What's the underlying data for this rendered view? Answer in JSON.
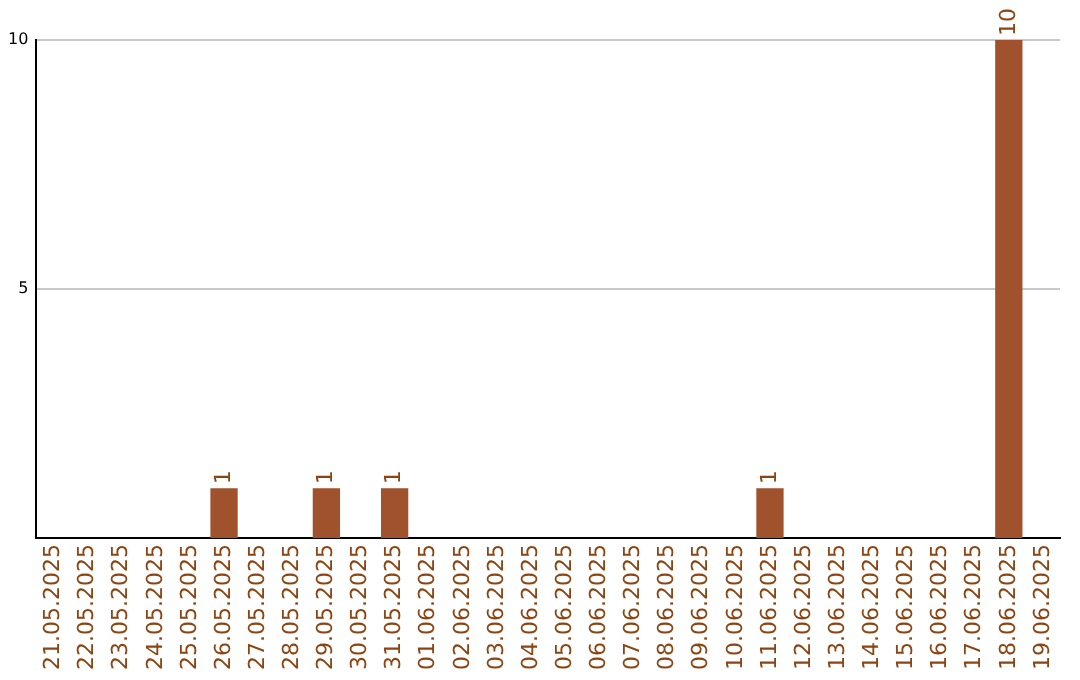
{
  "chart_data": {
    "type": "bar",
    "categories": [
      "21.05.2025",
      "22.05.2025",
      "23.05.2025",
      "24.05.2025",
      "25.05.2025",
      "26.05.2025",
      "27.05.2025",
      "28.05.2025",
      "29.05.2025",
      "30.05.2025",
      "31.05.2025",
      "01.06.2025",
      "02.06.2025",
      "03.06.2025",
      "04.06.2025",
      "05.06.2025",
      "06.06.2025",
      "07.06.2025",
      "08.06.2025",
      "09.06.2025",
      "10.06.2025",
      "11.06.2025",
      "12.06.2025",
      "13.06.2025",
      "14.06.2025",
      "15.06.2025",
      "16.06.2025",
      "17.06.2025",
      "18.06.2025",
      "19.06.2025"
    ],
    "values": [
      0,
      0,
      0,
      0,
      0,
      1,
      0,
      0,
      1,
      0,
      1,
      0,
      0,
      0,
      0,
      0,
      0,
      0,
      0,
      0,
      0,
      1,
      0,
      0,
      0,
      0,
      0,
      0,
      10,
      0
    ],
    "value_labels": [
      null,
      null,
      null,
      null,
      null,
      "1",
      null,
      null,
      "1",
      null,
      "1",
      null,
      null,
      null,
      null,
      null,
      null,
      null,
      null,
      null,
      null,
      "1",
      null,
      null,
      null,
      null,
      null,
      null,
      "10",
      null
    ],
    "color": "#a0522d",
    "ylim": [
      0,
      10
    ],
    "yticks": [
      5,
      10
    ],
    "grid": "y",
    "legend": false
  }
}
